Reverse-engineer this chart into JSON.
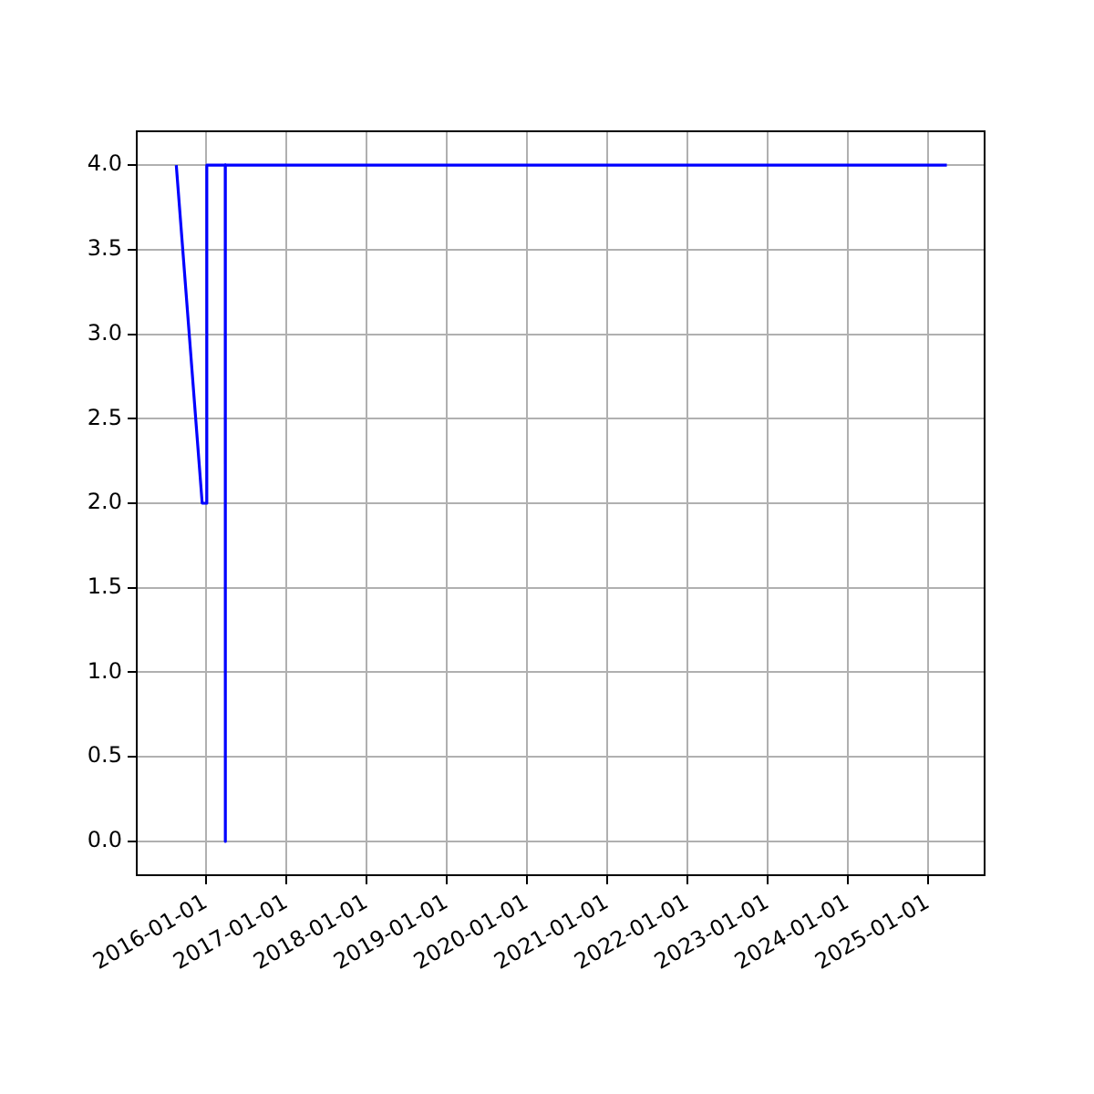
{
  "chart_data": {
    "type": "line",
    "x": [
      "2015-08-19",
      "2015-12-15",
      "2016-01-05",
      "2016-01-05",
      "2016-03-29",
      "2016-03-29",
      "2016-03-30",
      "2025-03-28"
    ],
    "series": [
      {
        "color": "#0000ff",
        "values": [
          4,
          2,
          2,
          4,
          4,
          0,
          4,
          4
        ]
      }
    ],
    "xlim": [
      "2015-02-20",
      "2025-09-16"
    ],
    "xticks": [
      "2016-01-01",
      "2017-01-01",
      "2018-01-01",
      "2019-01-01",
      "2020-01-01",
      "2021-01-01",
      "2022-01-01",
      "2023-01-01",
      "2024-01-01",
      "2025-01-01"
    ],
    "ylim": [
      -0.2,
      4.2
    ],
    "yticks": [
      {
        "value": 0,
        "label": "0.0"
      },
      {
        "value": 0.5,
        "label": "0.5"
      },
      {
        "value": 1,
        "label": "1.0"
      },
      {
        "value": 1.5,
        "label": "1.5"
      },
      {
        "value": 2,
        "label": "2.0"
      },
      {
        "value": 2.5,
        "label": "2.5"
      },
      {
        "value": 3,
        "label": "3.0"
      },
      {
        "value": 3.5,
        "label": "3.5"
      },
      {
        "value": 4,
        "label": "4.0"
      }
    ],
    "grid": true,
    "legend": false,
    "marker": "none",
    "line_style": "solid"
  }
}
